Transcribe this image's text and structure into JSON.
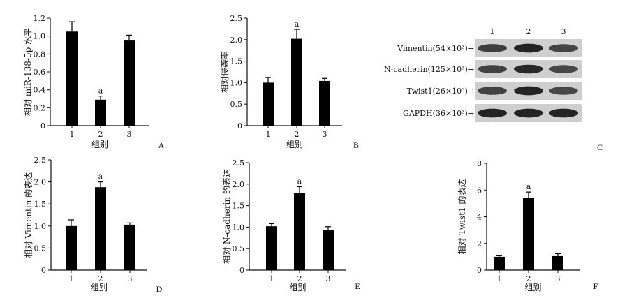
{
  "chart_data": [
    {
      "type": "bar",
      "panel": "A",
      "categories": [
        "1",
        "2",
        "3"
      ],
      "values": [
        1.05,
        0.29,
        0.95
      ],
      "errors": [
        0.11,
        0.04,
        0.06
      ],
      "annotations": [
        "",
        "a",
        ""
      ],
      "xlabel": "组别",
      "ylabel": "相对 miR-138-5p 水平",
      "ylim": [
        0,
        1.2
      ],
      "yticks": [
        "0",
        "0.2",
        "0.4",
        "0.6",
        "0.8",
        "1.0",
        "1.2"
      ],
      "yticks_values": [
        0,
        0.2,
        0.4,
        0.6,
        0.8,
        1.0,
        1.2
      ]
    },
    {
      "type": "bar",
      "panel": "B",
      "categories": [
        "1",
        "2",
        "3"
      ],
      "values": [
        1.0,
        2.02,
        1.04
      ],
      "errors": [
        0.12,
        0.22,
        0.06
      ],
      "annotations": [
        "",
        "a",
        ""
      ],
      "xlabel": "组别",
      "ylabel": "相对侵袭率",
      "ylim": [
        0,
        2.5
      ],
      "yticks": [
        "0",
        "0.5",
        "1.0",
        "1.5",
        "2.0",
        "2.5"
      ],
      "yticks_values": [
        0,
        0.5,
        1.0,
        1.5,
        2.0,
        2.5
      ]
    },
    {
      "type": "bar",
      "panel": "D",
      "categories": [
        "1",
        "2",
        "3"
      ],
      "values": [
        1.0,
        1.88,
        1.03
      ],
      "errors": [
        0.14,
        0.12,
        0.04
      ],
      "annotations": [
        "",
        "a",
        ""
      ],
      "xlabel": "组别",
      "ylabel": "相对 Vimentin 的表达",
      "ylim": [
        0,
        2.5
      ],
      "yticks": [
        "0",
        "0.5",
        "1.0",
        "1.5",
        "2.0",
        "2.5"
      ],
      "yticks_values": [
        0,
        0.5,
        1.0,
        1.5,
        2.0,
        2.5
      ]
    },
    {
      "type": "bar",
      "panel": "E",
      "categories": [
        "1",
        "2",
        "3"
      ],
      "values": [
        1.02,
        1.79,
        0.93
      ],
      "errors": [
        0.06,
        0.15,
        0.08
      ],
      "annotations": [
        "",
        "a",
        ""
      ],
      "xlabel": "组别",
      "ylabel": "相对 N-cadherin 的表达",
      "ylim": [
        0,
        2.5
      ],
      "yticks": [
        "0",
        "0.5",
        "1.0",
        "1.5",
        "2.0",
        "2.5"
      ],
      "yticks_values": [
        0,
        0.5,
        1.0,
        1.5,
        2.0,
        2.5
      ]
    },
    {
      "type": "bar",
      "panel": "F",
      "categories": [
        "1",
        "2",
        "3"
      ],
      "values": [
        1.0,
        5.4,
        1.05
      ],
      "errors": [
        0.08,
        0.45,
        0.18
      ],
      "annotations": [
        "",
        "a",
        ""
      ],
      "xlabel": "组别",
      "ylabel": "相对 Twist1 的表达",
      "ylim": [
        0,
        8
      ],
      "yticks": [
        "0",
        "2",
        "4",
        "6",
        "8"
      ],
      "yticks_values": [
        0,
        2,
        4,
        6,
        8
      ]
    }
  ],
  "blot": {
    "panel": "C",
    "lanes": [
      "1",
      "2",
      "3"
    ],
    "rows": [
      {
        "label": "Vimentin(54×10³)→",
        "intensity": [
          0.75,
          0.95,
          0.7
        ]
      },
      {
        "label": "N-cadherin(125×10³)→",
        "intensity": [
          0.72,
          0.92,
          0.68
        ]
      },
      {
        "label": "Twist1(26×10³)→",
        "intensity": [
          0.72,
          0.95,
          0.68
        ]
      },
      {
        "label": "GAPDH(36×10³)→",
        "intensity": [
          0.95,
          0.95,
          0.95
        ]
      }
    ]
  }
}
